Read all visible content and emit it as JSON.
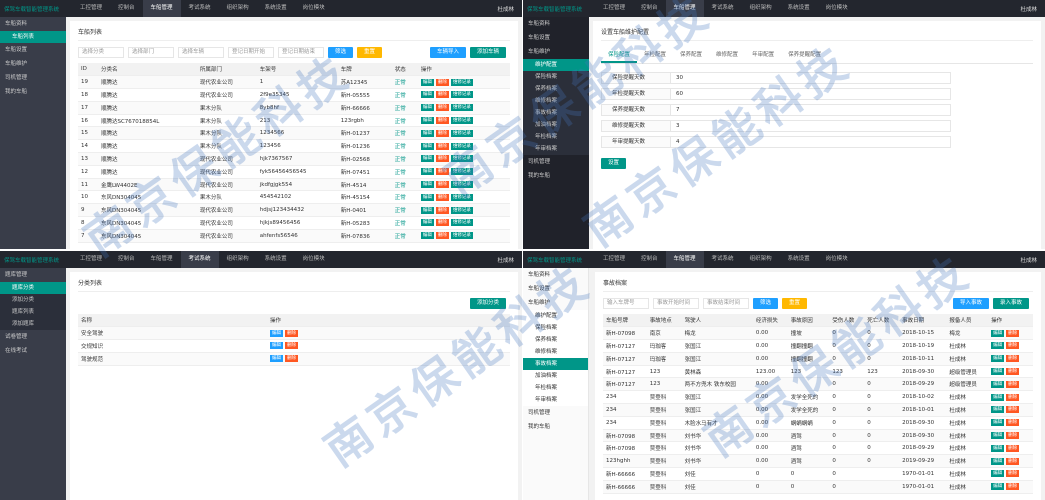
{
  "watermark": "南京保能科技",
  "panels": [
    {
      "topbar": {
        "brand": "保驾车载智能管理系统",
        "nav": [
          {
            "label": "工控管理"
          },
          {
            "label": "控制台"
          },
          {
            "label": "车船管理",
            "active": true
          },
          {
            "label": "考试系统"
          },
          {
            "label": "组织架构"
          },
          {
            "label": "系统设置"
          },
          {
            "label": "岗位模块"
          }
        ],
        "user": "杜成林"
      },
      "sidebar": [
        {
          "label": "车船资料",
          "active": true,
          "children": [
            {
              "label": "车船列表",
              "active": true
            }
          ]
        },
        {
          "label": "车船设置"
        },
        {
          "label": "车船维护"
        },
        {
          "label": "司机管理"
        },
        {
          "label": "我的车船"
        }
      ],
      "content": {
        "title": "车船列表",
        "filters": [
          "选择分类",
          "选择部门",
          "选择车辆",
          "登记日期开始",
          "登记日期结束"
        ],
        "buttons": [
          {
            "label": "筛选",
            "color": "#1e9fff"
          },
          {
            "label": "重置",
            "color": "#ffb800"
          }
        ],
        "buttons_right": [
          {
            "label": "车辆导入",
            "color": "#1e9fff"
          },
          {
            "label": "添加车辆",
            "color": "#009688"
          }
        ],
        "headers": [
          "ID",
          "分类名",
          "所属部门",
          "车架号",
          "车牌",
          "状态",
          "操作"
        ],
        "rows": [
          [
            "19",
            "顺腾达",
            "现代农业公司",
            "1",
            "苏A12345",
            "正常"
          ],
          [
            "18",
            "顺腾达",
            "现代农业公司",
            "2f9e35345",
            "新H-05555",
            "正常"
          ],
          [
            "17",
            "顺腾达",
            "果木分队",
            "8yb8hf",
            "新H-66666",
            "正常"
          ],
          [
            "16",
            "顺腾达SC767018854L",
            "果木分队",
            "213",
            "123rgbh",
            "正常"
          ],
          [
            "15",
            "顺腾达",
            "果木分队",
            "1234566",
            "新H-01237",
            "正常"
          ],
          [
            "14",
            "顺腾达",
            "果木分队",
            "123456",
            "新H-01236",
            "正常"
          ],
          [
            "13",
            "顺腾达",
            "现代农业公司",
            "hjk7367567",
            "新H-02568",
            "正常"
          ],
          [
            "12",
            "顺腾达",
            "现代农业公司",
            "fyk56456456545",
            "新H-07451",
            "正常"
          ],
          [
            "11",
            "金鹰LW4402E",
            "现代农业公司",
            "jkdfgjgk554",
            "新H-4514",
            "正常"
          ],
          [
            "10",
            "东风DN304045",
            "果木分队",
            "454542102",
            "新H-45154",
            "正常"
          ],
          [
            "9",
            "东风DN304045",
            "现代农业公司",
            "hdjsj123434432",
            "新H-0401",
            "正常"
          ],
          [
            "8",
            "东风DN304045",
            "现代农业公司",
            "hjkjs89456456",
            "新H-05283",
            "正常"
          ],
          [
            "7",
            "东风DN304045",
            "现代农业公司",
            "ahfenfs56546",
            "新H-07836",
            "正常"
          ]
        ],
        "status_col": 5,
        "actions": [
          {
            "label": "编辑",
            "color": "#009688"
          },
          {
            "label": "删除",
            "color": "#ff5722"
          },
          {
            "label": "维修记录",
            "color": "#009688"
          }
        ]
      }
    },
    {
      "topbar": {
        "brand": "保驾车载智能管理系统",
        "nav": [
          {
            "label": "工控管理"
          },
          {
            "label": "控制台"
          },
          {
            "label": "车船管理",
            "active": true
          },
          {
            "label": "考试系统"
          },
          {
            "label": "组织架构"
          },
          {
            "label": "系统设置"
          },
          {
            "label": "岗位模块"
          }
        ],
        "user": "杜成林"
      },
      "sidebar": [
        {
          "label": "车船资料"
        },
        {
          "label": "车船设置"
        },
        {
          "label": "车船维护",
          "active": true,
          "children": [
            {
              "label": "维护配置",
              "active": true
            },
            {
              "label": "保险档案"
            },
            {
              "label": "保养档案"
            },
            {
              "label": "维修档案"
            },
            {
              "label": "事故档案"
            },
            {
              "label": "加油档案"
            },
            {
              "label": "年检档案"
            },
            {
              "label": "年审档案"
            }
          ]
        },
        {
          "label": "司机管理"
        },
        {
          "label": "我的车船"
        }
      ],
      "content": {
        "title": "设置车船维护配置",
        "tabs": [
          "保险配置",
          "年检配置",
          "保养配置",
          "维修配置",
          "年审配置",
          "保养提醒配置"
        ],
        "fields": [
          {
            "label": "保险提醒天数",
            "value": "30"
          },
          {
            "label": "年检提醒天数",
            "value": "60"
          },
          {
            "label": "保养提醒天数",
            "value": "7"
          },
          {
            "label": "维修提醒天数",
            "value": "3"
          },
          {
            "label": "年审提醒天数",
            "value": "4"
          }
        ],
        "submit": {
          "label": "设置",
          "color": "#009688"
        }
      }
    },
    {
      "topbar": {
        "brand": "保驾车载智能管理系统",
        "nav": [
          {
            "label": "工控管理"
          },
          {
            "label": "控制台"
          },
          {
            "label": "车船管理"
          },
          {
            "label": "考试系统",
            "active": true
          },
          {
            "label": "组织架构"
          },
          {
            "label": "系统设置"
          },
          {
            "label": "岗位模块"
          }
        ],
        "user": "杜成林"
      },
      "sidebar": [
        {
          "label": "题库管理",
          "active": true,
          "children": [
            {
              "label": "题库分类",
              "active": true
            },
            {
              "label": "添加分类"
            },
            {
              "label": "题库列表"
            },
            {
              "label": "添加题库"
            }
          ]
        },
        {
          "label": "试卷管理"
        },
        {
          "label": "在线考试"
        }
      ],
      "content": {
        "title": "分类列表",
        "buttons_right": [
          {
            "label": "添加分类",
            "color": "#009688"
          }
        ],
        "headers": [
          "名称",
          "操作"
        ],
        "rows": [
          [
            "安全驾驶"
          ],
          [
            "交规知识"
          ],
          [
            "驾驶规范"
          ]
        ],
        "actions": [
          {
            "label": "编辑",
            "color": "#1e9fff"
          },
          {
            "label": "删除",
            "color": "#ff5722"
          }
        ]
      }
    },
    {
      "topbar": {
        "brand": "保驾车载智能管理系统",
        "nav": [
          {
            "label": "工控管理"
          },
          {
            "label": "控制台"
          },
          {
            "label": "车船管理",
            "active": true
          },
          {
            "label": "考试系统"
          },
          {
            "label": "组织架构"
          },
          {
            "label": "系统设置"
          },
          {
            "label": "岗位模块"
          }
        ],
        "user": "杜成林"
      },
      "sidebar": [
        {
          "label": "车船资料"
        },
        {
          "label": "车船设置"
        },
        {
          "label": "车船维护",
          "active": true,
          "children": [
            {
              "label": "维护配置"
            },
            {
              "label": "保险档案"
            },
            {
              "label": "保养档案"
            },
            {
              "label": "维修档案"
            },
            {
              "label": "事故档案",
              "active": true
            },
            {
              "label": "加油档案"
            },
            {
              "label": "年检档案"
            },
            {
              "label": "年审档案"
            }
          ]
        },
        {
          "label": "司机管理"
        },
        {
          "label": "我的车船"
        }
      ],
      "content": {
        "title": "事故档案",
        "filters": [
          "输入车牌号",
          "事故开始时间",
          "事故结束时间"
        ],
        "buttons": [
          {
            "label": "筛选",
            "color": "#1e9fff"
          },
          {
            "label": "重置",
            "color": "#ffb800"
          }
        ],
        "buttons_right": [
          {
            "label": "导入事故",
            "color": "#1e9fff"
          },
          {
            "label": "录入事故",
            "color": "#009688"
          }
        ],
        "headers": [
          "车船号牌",
          "事故地点",
          "驾驶人",
          "经济损失",
          "事故原因",
          "受伤人数",
          "死亡人数",
          "事故日期",
          "报备人员",
          "操作"
        ],
        "rows": [
          [
            "新H-07098",
            "南京",
            "梅龙",
            "0.00",
            "撞坡",
            "0",
            "0",
            "2018-10-15",
            "梅龙"
          ],
          [
            "新H-07127",
            "玛珈客",
            "张国江",
            "0.00",
            "撞翻撞翻",
            "0",
            "0",
            "2018-10-19",
            "杜成林"
          ],
          [
            "新H-07127",
            "玛珈客",
            "张国江",
            "0.00",
            "撞翻撞翻",
            "0",
            "0",
            "2018-10-11",
            "杜成林"
          ],
          [
            "新H-07127",
            "123",
            "黄林森",
            "123.00",
            "123",
            "123",
            "123",
            "2018-09-30",
            "超级管理员"
          ],
          [
            "新H-07127",
            "123",
            "两不方兜木 铁东校园",
            "0.00",
            "",
            "0",
            "0",
            "2018-09-29",
            "超级管理员"
          ],
          [
            "234",
            "贾登科",
            "张国江",
            "0.00",
            "发学全死的",
            "0",
            "0",
            "2018-10-02",
            "杜成林"
          ],
          [
            "234",
            "贾登科",
            "张国江",
            "0.00",
            "发学全死的",
            "0",
            "0",
            "2018-10-01",
            "杜成林"
          ],
          [
            "234",
            "贾登科",
            "木脸水马有才",
            "0.00",
            "蜗蜗蜗蜗",
            "0",
            "0",
            "2018-09-30",
            "杜成林"
          ],
          [
            "新H-07098",
            "贾登科",
            "刘书华",
            "0.00",
            "酒驾",
            "0",
            "0",
            "2018-09-30",
            "杜成林"
          ],
          [
            "新H-07098",
            "贾登科",
            "刘书华",
            "0.00",
            "酒驾",
            "0",
            "0",
            "2018-09-29",
            "杜成林"
          ],
          [
            "123hghh",
            "贾登科",
            "刘书华",
            "0.00",
            "酒驾",
            "0",
            "0",
            "2019-09-29",
            "杜成林"
          ],
          [
            "新H-66666",
            "贾登科",
            "刘佳",
            "0",
            "0",
            "0",
            "",
            "1970-01-01",
            "杜成林"
          ],
          [
            "新H-66666",
            "贾登科",
            "刘佳",
            "0",
            "0",
            "0",
            "",
            "1970-01-01",
            "杜成林"
          ]
        ],
        "actions": [
          {
            "label": "编辑",
            "color": "#009688"
          },
          {
            "label": "删除",
            "color": "#ff5722"
          }
        ]
      }
    }
  ]
}
